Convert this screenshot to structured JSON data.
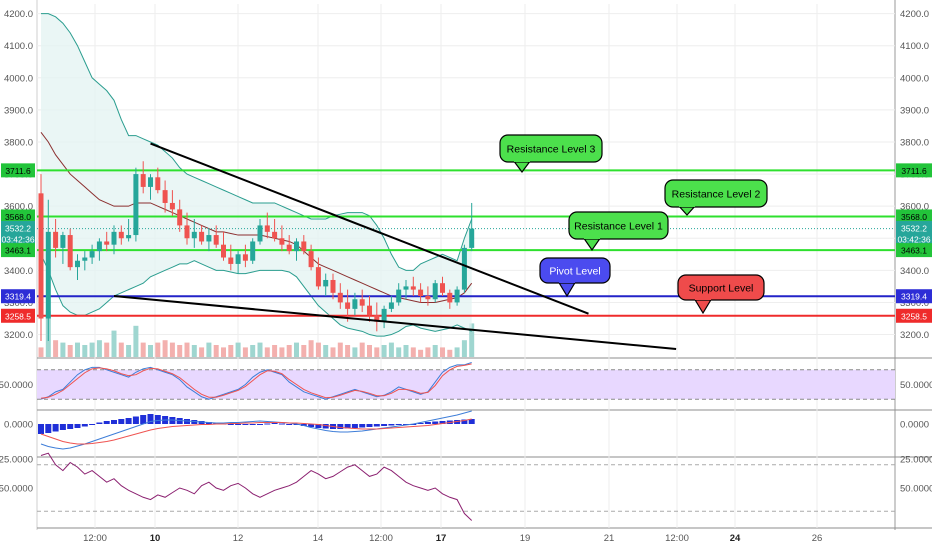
{
  "chart_data": {
    "type": "candlestick",
    "main_panel": {
      "y_axis": {
        "min": 3130,
        "max": 4230,
        "ticks": [
          "4200.0",
          "4100.0",
          "4000.0",
          "3900.0",
          "3800.0",
          "3700.0",
          "3600.0",
          "3500.0",
          "3400.0",
          "3300.0",
          "3200.0"
        ],
        "tick_values": [
          4200,
          4100,
          4000,
          3900,
          3800,
          3700,
          3600,
          3500,
          3400,
          3300,
          3200
        ]
      },
      "price_tags": [
        {
          "text": "3711.6",
          "value": 3711.6,
          "color": "#22c43a",
          "text_color": "#000000"
        },
        {
          "text": "3568.0",
          "value": 3568.0,
          "color": "#22c43a",
          "text_color": "#000000"
        },
        {
          "text": "3532.2",
          "value": 3532.2,
          "color": "#26a69a",
          "text_color": "#ffffff"
        },
        {
          "text": "03:42:36",
          "value": 3497,
          "color": "#26a69a",
          "text_color": "#ffffff"
        },
        {
          "text": "3463.1",
          "value": 3463.1,
          "color": "#22c43a",
          "text_color": "#000000"
        },
        {
          "text": "3319.4",
          "value": 3319.4,
          "color": "#2d2dd6",
          "text_color": "#ffffff"
        },
        {
          "text": "3258.5",
          "value": 3258.5,
          "color": "#ef2b2b",
          "text_color": "#ffffff"
        }
      ],
      "horizontal_levels": [
        {
          "value": 3711.6,
          "color": "#2ee02e"
        },
        {
          "value": 3568.0,
          "color": "#2ee02e"
        },
        {
          "value": 3463.1,
          "color": "#2ee02e"
        },
        {
          "value": 3319.4,
          "color": "#2323c8"
        },
        {
          "value": 3258.5,
          "color": "#ef2b2b"
        }
      ],
      "callouts": [
        {
          "text": "Resistance Level 3",
          "color": "#4ce04c"
        },
        {
          "text": "Resistance Level 2",
          "color": "#4ce04c"
        },
        {
          "text": "Resistance Level 1",
          "color": "#4ce04c"
        },
        {
          "text": "Pivot Level",
          "color": "#4b4bef"
        },
        {
          "text": "Support Level",
          "color": "#ef4b4b"
        }
      ],
      "trendlines": [
        {
          "from": {
            "bar": 15,
            "price": 3795
          },
          "to": {
            "bar": 75,
            "price": 3265
          }
        },
        {
          "from": {
            "bar": 10,
            "price": 3320
          },
          "to": {
            "bar": 87,
            "price": 3155
          }
        }
      ],
      "candles": [
        [
          3640,
          3700,
          3180,
          3250
        ],
        [
          3250,
          3620,
          3180,
          3520
        ],
        [
          3520,
          3560,
          3440,
          3470
        ],
        [
          3470,
          3520,
          3420,
          3510
        ],
        [
          3510,
          3530,
          3400,
          3410
        ],
        [
          3410,
          3450,
          3370,
          3430
        ],
        [
          3430,
          3460,
          3400,
          3440
        ],
        [
          3440,
          3480,
          3420,
          3460
        ],
        [
          3460,
          3500,
          3430,
          3490
        ],
        [
          3490,
          3520,
          3460,
          3480
        ],
        [
          3480,
          3540,
          3450,
          3520
        ],
        [
          3520,
          3540,
          3480,
          3500
        ],
        [
          3500,
          3560,
          3490,
          3510
        ],
        [
          3510,
          3720,
          3490,
          3700
        ],
        [
          3700,
          3740,
          3640,
          3660
        ],
        [
          3660,
          3700,
          3620,
          3690
        ],
        [
          3690,
          3720,
          3640,
          3650
        ],
        [
          3650,
          3680,
          3580,
          3610
        ],
        [
          3610,
          3650,
          3570,
          3590
        ],
        [
          3590,
          3620,
          3520,
          3540
        ],
        [
          3540,
          3580,
          3480,
          3500
        ],
        [
          3500,
          3560,
          3470,
          3520
        ],
        [
          3520,
          3540,
          3480,
          3490
        ],
        [
          3490,
          3530,
          3460,
          3510
        ],
        [
          3510,
          3540,
          3470,
          3480
        ],
        [
          3480,
          3520,
          3430,
          3440
        ],
        [
          3440,
          3480,
          3400,
          3420
        ],
        [
          3420,
          3460,
          3390,
          3450
        ],
        [
          3450,
          3480,
          3410,
          3430
        ],
        [
          3430,
          3500,
          3420,
          3490
        ],
        [
          3490,
          3560,
          3480,
          3540
        ],
        [
          3540,
          3580,
          3500,
          3520
        ],
        [
          3520,
          3560,
          3490,
          3500
        ],
        [
          3500,
          3540,
          3460,
          3480
        ],
        [
          3480,
          3510,
          3450,
          3460
        ],
        [
          3460,
          3500,
          3430,
          3490
        ],
        [
          3490,
          3510,
          3450,
          3460
        ],
        [
          3460,
          3480,
          3400,
          3410
        ],
        [
          3410,
          3440,
          3340,
          3350
        ],
        [
          3350,
          3390,
          3320,
          3370
        ],
        [
          3370,
          3390,
          3310,
          3330
        ],
        [
          3330,
          3360,
          3280,
          3300
        ],
        [
          3300,
          3340,
          3240,
          3280
        ],
        [
          3280,
          3330,
          3260,
          3310
        ],
        [
          3310,
          3340,
          3270,
          3290
        ],
        [
          3290,
          3320,
          3240,
          3260
        ],
        [
          3260,
          3300,
          3210,
          3240
        ],
        [
          3240,
          3290,
          3220,
          3280
        ],
        [
          3280,
          3320,
          3270,
          3300
        ],
        [
          3300,
          3360,
          3290,
          3340
        ],
        [
          3340,
          3370,
          3310,
          3350
        ],
        [
          3350,
          3380,
          3320,
          3340
        ],
        [
          3340,
          3360,
          3300,
          3320
        ],
        [
          3320,
          3350,
          3290,
          3310
        ],
        [
          3310,
          3370,
          3300,
          3360
        ],
        [
          3360,
          3380,
          3320,
          3330
        ],
        [
          3330,
          3340,
          3280,
          3300
        ],
        [
          3300,
          3350,
          3290,
          3340
        ],
        [
          3340,
          3480,
          3330,
          3470
        ],
        [
          3470,
          3610,
          3460,
          3530
        ]
      ],
      "bollinger": {
        "upper": [
          4200,
          4200,
          4190,
          4170,
          4140,
          4100,
          4050,
          4000,
          3980,
          3960,
          3930,
          3870,
          3820,
          3820,
          3810,
          3800,
          3790,
          3770,
          3750,
          3720,
          3700,
          3690,
          3680,
          3670,
          3660,
          3650,
          3640,
          3630,
          3620,
          3610,
          3610,
          3610,
          3610,
          3600,
          3590,
          3580,
          3570,
          3560,
          3560,
          3560,
          3570,
          3575,
          3580,
          3580,
          3580,
          3570,
          3540,
          3500,
          3450,
          3410,
          3400,
          3400,
          3420,
          3430,
          3440,
          3450,
          3440,
          3430,
          3500,
          3560
        ],
        "basis": [
          3830,
          3800,
          3760,
          3730,
          3700,
          3680,
          3660,
          3640,
          3620,
          3610,
          3600,
          3600,
          3600,
          3610,
          3610,
          3610,
          3600,
          3590,
          3580,
          3570,
          3560,
          3550,
          3540,
          3530,
          3520,
          3520,
          3515,
          3510,
          3510,
          3510,
          3510,
          3505,
          3500,
          3495,
          3490,
          3480,
          3460,
          3440,
          3420,
          3410,
          3400,
          3390,
          3380,
          3370,
          3360,
          3350,
          3340,
          3330,
          3320,
          3315,
          3310,
          3305,
          3300,
          3300,
          3300,
          3305,
          3310,
          3315,
          3330,
          3360
        ],
        "lower": [
          3450,
          3400,
          3340,
          3290,
          3270,
          3260,
          3260,
          3270,
          3280,
          3300,
          3320,
          3330,
          3340,
          3350,
          3360,
          3380,
          3390,
          3400,
          3410,
          3420,
          3420,
          3430,
          3420,
          3410,
          3400,
          3400,
          3395,
          3390,
          3390,
          3395,
          3400,
          3400,
          3400,
          3400,
          3395,
          3380,
          3350,
          3320,
          3290,
          3270,
          3250,
          3230,
          3220,
          3215,
          3210,
          3200,
          3195,
          3195,
          3200,
          3210,
          3225,
          3230,
          3220,
          3215,
          3210,
          3215,
          3220,
          3230,
          3220,
          3210
        ]
      },
      "volume_ratio": [
        0.2,
        0.95,
        0.35,
        0.3,
        0.25,
        0.3,
        0.25,
        0.3,
        0.35,
        0.3,
        0.55,
        0.3,
        0.25,
        0.65,
        0.3,
        0.25,
        0.3,
        0.35,
        0.3,
        0.25,
        0.3,
        0.25,
        0.2,
        0.3,
        0.25,
        0.2,
        0.25,
        0.3,
        0.2,
        0.25,
        0.3,
        0.2,
        0.25,
        0.2,
        0.25,
        0.3,
        0.25,
        0.35,
        0.3,
        0.25,
        0.2,
        0.3,
        0.25,
        0.2,
        0.3,
        0.25,
        0.2,
        0.25,
        0.3,
        0.2,
        0.25,
        0.2,
        0.15,
        0.2,
        0.25,
        0.2,
        0.15,
        0.2,
        0.35,
        0.7
      ]
    },
    "stoch_panel": {
      "tick_labels": [
        "50.0000"
      ],
      "k": [
        20,
        25,
        35,
        40,
        55,
        70,
        80,
        85,
        85,
        80,
        75,
        70,
        65,
        75,
        82,
        85,
        80,
        75,
        70,
        60,
        45,
        35,
        25,
        20,
        25,
        30,
        35,
        40,
        50,
        65,
        75,
        80,
        75,
        70,
        55,
        45,
        35,
        30,
        25,
        20,
        25,
        30,
        35,
        40,
        35,
        30,
        25,
        28,
        35,
        45,
        40,
        35,
        30,
        35,
        55,
        75,
        85,
        90,
        90,
        95
      ],
      "d": [
        22,
        24,
        30,
        38,
        50,
        62,
        74,
        82,
        84,
        82,
        78,
        72,
        68,
        70,
        78,
        83,
        82,
        77,
        72,
        64,
        52,
        40,
        30,
        24,
        24,
        28,
        33,
        38,
        46,
        58,
        70,
        78,
        77,
        72,
        60,
        50,
        40,
        33,
        28,
        23,
        24,
        28,
        33,
        38,
        36,
        32,
        27,
        27,
        32,
        40,
        40,
        37,
        32,
        34,
        48,
        68,
        80,
        87,
        89,
        92
      ]
    },
    "macd_panel": {
      "tick_labels": [
        "0.0000"
      ],
      "histogram": [
        -20,
        -18,
        -15,
        -12,
        -10,
        -8,
        -5,
        -2,
        3,
        6,
        8,
        10,
        12,
        15,
        18,
        20,
        18,
        16,
        14,
        12,
        10,
        8,
        6,
        4,
        2,
        1,
        0,
        -1,
        -2,
        -1,
        0,
        1,
        2,
        1,
        0,
        -2,
        -4,
        -6,
        -8,
        -9,
        -10,
        -10,
        -9,
        -8,
        -7,
        -6,
        -5,
        -4,
        -3,
        -2,
        -1,
        0,
        2,
        4,
        5,
        6,
        7,
        8,
        9,
        10
      ],
      "macd": [
        -40,
        -45,
        -48,
        -50,
        -48,
        -44,
        -40,
        -35,
        -30,
        -25,
        -20,
        -15,
        -10,
        -5,
        0,
        5,
        7,
        8,
        8,
        7,
        6,
        5,
        4,
        3,
        2,
        2,
        3,
        3,
        4,
        5,
        6,
        5,
        4,
        3,
        2,
        0,
        -3,
        -7,
        -10,
        -13,
        -15,
        -16,
        -16,
        -15,
        -14,
        -12,
        -10,
        -8,
        -6,
        -4,
        -2,
        0,
        3,
        6,
        9,
        12,
        15,
        18,
        22,
        26
      ],
      "signal": [
        -20,
        -25,
        -30,
        -35,
        -38,
        -40,
        -40,
        -39,
        -37,
        -35,
        -32,
        -28,
        -24,
        -20,
        -16,
        -12,
        -9,
        -7,
        -5,
        -4,
        -3,
        -2,
        -1,
        -1,
        0,
        0,
        1,
        1,
        2,
        2,
        3,
        3,
        3,
        3,
        2,
        2,
        1,
        0,
        -1,
        -3,
        -5,
        -7,
        -8,
        -9,
        -10,
        -10,
        -10,
        -9,
        -8,
        -7,
        -6,
        -5,
        -4,
        -3,
        -1,
        1,
        3,
        5,
        7,
        10
      ]
    },
    "rsi_panel": {
      "tick_labels": [
        "50.0000",
        "25.0000"
      ],
      "tick_values": [
        50,
        25
      ],
      "values": [
        22,
        20,
        30,
        35,
        28,
        32,
        38,
        35,
        40,
        45,
        42,
        48,
        52,
        55,
        58,
        60,
        56,
        58,
        54,
        50,
        52,
        55,
        48,
        45,
        50,
        52,
        48,
        46,
        50,
        55,
        58,
        55,
        52,
        50,
        48,
        45,
        40,
        35,
        38,
        42,
        40,
        36,
        32,
        30,
        35,
        40,
        38,
        32,
        35,
        40,
        45,
        48,
        50,
        52,
        50,
        55,
        58,
        60,
        72,
        78
      ]
    },
    "x_axis": {
      "labels": [
        "12:00",
        "10",
        "12",
        "14",
        "12:00",
        "17",
        "19",
        "21",
        "12:00",
        "24",
        "26"
      ],
      "bold": [
        false,
        true,
        false,
        false,
        false,
        true,
        false,
        false,
        false,
        true,
        false
      ]
    },
    "colors": {
      "up": "#26a69a",
      "down": "#ef5350",
      "bb": "#2a9d8f",
      "basis": "#8b2f2f",
      "bb_fill": "#e3f3f1",
      "stoch_band": "#e8d8ff",
      "rsi_band": "#efe4ff",
      "k": "#3d7dd8",
      "d": "#ef5350",
      "rsi": "#8b2070",
      "macd": "#3d7dd8",
      "signal": "#ef5350",
      "hist": "#1f2fd8"
    }
  }
}
